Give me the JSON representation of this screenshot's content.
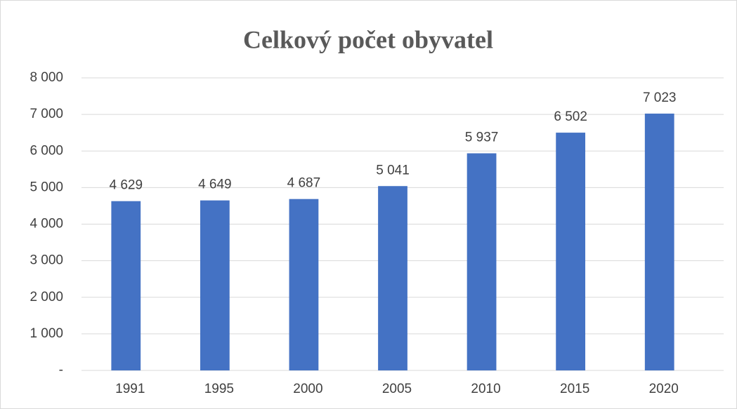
{
  "chart_data": {
    "type": "bar",
    "title": "Celkový počet obyvatel",
    "categories": [
      "1991",
      "1995",
      "2000",
      "2005",
      "2010",
      "2015",
      "2020"
    ],
    "values": [
      4629,
      4649,
      4687,
      5041,
      5937,
      6502,
      7023
    ],
    "value_labels": [
      "4 629",
      "4 649",
      "4 687",
      "5 041",
      "5 937",
      "6 502",
      "7 023"
    ],
    "color": "#4472c4",
    "ylim": [
      0,
      8000
    ],
    "yticks": [
      {
        "value": 0,
        "label": "-"
      },
      {
        "value": 1000,
        "label": "1 000"
      },
      {
        "value": 2000,
        "label": "2 000"
      },
      {
        "value": 3000,
        "label": "3 000"
      },
      {
        "value": 4000,
        "label": "4 000"
      },
      {
        "value": 5000,
        "label": "5 000"
      },
      {
        "value": 6000,
        "label": "6 000"
      },
      {
        "value": 7000,
        "label": "7 000"
      },
      {
        "value": 8000,
        "label": "8 000"
      }
    ],
    "grid": true
  }
}
